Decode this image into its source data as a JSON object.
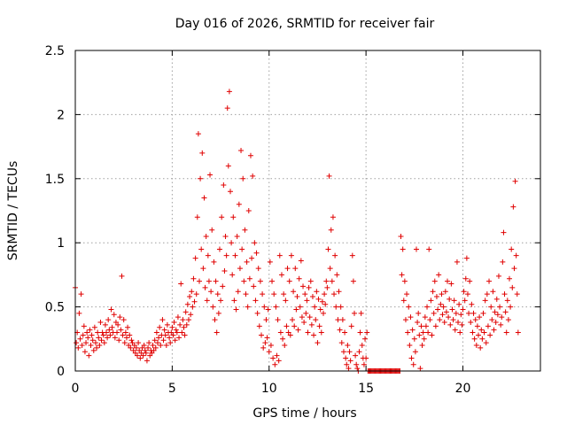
{
  "chart_data": {
    "type": "scatter",
    "title": "Day 016 of 2026, SRMTID for receiver fair",
    "xlabel": "GPS time / hours",
    "ylabel": "SRMTID / TECUs",
    "xlim": [
      0,
      24
    ],
    "ylim": [
      0,
      2.5
    ],
    "xticks": [
      0,
      5,
      10,
      15,
      20
    ],
    "xtick_labels": [
      "0",
      "5",
      "10",
      "15",
      "20"
    ],
    "yticks": [
      0,
      0.5,
      1,
      1.5,
      2,
      2.5
    ],
    "ytick_labels": [
      "0",
      "0.5",
      "1",
      "1.5",
      "2",
      "2.5"
    ],
    "grid": true,
    "marker": "+",
    "series": [
      {
        "name": "SRMTID",
        "color": "#e00000",
        "x": [
          0.0,
          0.05,
          0.1,
          0.15,
          0.2,
          0.25,
          0.3,
          0.35,
          0.4,
          0.45,
          0.5,
          0.55,
          0.6,
          0.65,
          0.7,
          0.75,
          0.8,
          0.85,
          0.9,
          0.95,
          1.0,
          1.05,
          1.1,
          1.15,
          1.2,
          1.25,
          1.3,
          1.35,
          1.4,
          1.45,
          1.5,
          1.55,
          1.6,
          1.65,
          1.7,
          1.75,
          1.8,
          1.85,
          1.9,
          1.95,
          2.0,
          2.05,
          2.1,
          2.15,
          2.2,
          2.25,
          2.3,
          2.35,
          2.4,
          2.45,
          2.5,
          2.55,
          2.6,
          2.65,
          2.7,
          2.75,
          2.8,
          2.85,
          2.9,
          2.95,
          3.0,
          3.05,
          3.1,
          3.15,
          3.2,
          3.25,
          3.3,
          3.35,
          3.4,
          3.45,
          3.5,
          3.55,
          3.6,
          3.65,
          3.7,
          3.75,
          3.8,
          3.85,
          3.9,
          3.95,
          4.0,
          4.05,
          4.1,
          4.15,
          4.2,
          4.25,
          4.3,
          4.35,
          4.4,
          4.45,
          4.5,
          4.55,
          4.6,
          4.65,
          4.7,
          4.75,
          4.8,
          4.85,
          4.9,
          4.95,
          5.0,
          5.05,
          5.1,
          5.15,
          5.2,
          5.25,
          5.3,
          5.35,
          5.4,
          5.45,
          5.5,
          5.55,
          5.6,
          5.65,
          5.7,
          5.75,
          5.8,
          5.85,
          5.9,
          5.95,
          6.0,
          6.05,
          6.1,
          6.15,
          6.2,
          6.25,
          6.3,
          6.35,
          6.4,
          6.45,
          6.5,
          6.55,
          6.6,
          6.65,
          6.7,
          6.75,
          6.8,
          6.85,
          6.9,
          6.95,
          7.0,
          7.05,
          7.1,
          7.15,
          7.2,
          7.25,
          7.3,
          7.35,
          7.4,
          7.45,
          7.5,
          7.55,
          7.6,
          7.65,
          7.7,
          7.75,
          7.8,
          7.85,
          7.9,
          7.95,
          8.0,
          8.05,
          8.1,
          8.15,
          8.2,
          8.25,
          8.3,
          8.35,
          8.4,
          8.45,
          8.5,
          8.55,
          8.6,
          8.65,
          8.7,
          8.75,
          8.8,
          8.85,
          8.9,
          8.95,
          9.0,
          9.05,
          9.1,
          9.15,
          9.2,
          9.25,
          9.3,
          9.35,
          9.4,
          9.45,
          9.5,
          9.55,
          9.6,
          9.65,
          9.7,
          9.75,
          9.8,
          9.85,
          9.9,
          9.95,
          10.0,
          10.05,
          10.1,
          10.15,
          10.2,
          10.25,
          10.3,
          10.35,
          10.4,
          10.45,
          10.5,
          10.55,
          10.6,
          10.65,
          10.7,
          10.75,
          10.8,
          10.85,
          10.9,
          10.95,
          11.0,
          11.05,
          11.1,
          11.15,
          11.2,
          11.25,
          11.3,
          11.35,
          11.4,
          11.45,
          11.5,
          11.55,
          11.6,
          11.65,
          11.7,
          11.75,
          11.8,
          11.85,
          11.9,
          11.95,
          12.0,
          12.05,
          12.1,
          12.15,
          12.2,
          12.25,
          12.3,
          12.35,
          12.4,
          12.45,
          12.5,
          12.55,
          12.6,
          12.65,
          12.7,
          12.75,
          12.8,
          12.85,
          12.9,
          12.95,
          13.0,
          13.05,
          13.1,
          13.15,
          13.2,
          13.25,
          13.3,
          13.35,
          13.4,
          13.45,
          13.5,
          13.55,
          13.6,
          13.65,
          13.7,
          13.75,
          13.8,
          13.85,
          13.9,
          13.95,
          14.0,
          14.05,
          14.1,
          14.15,
          14.2,
          14.25,
          14.3,
          14.35,
          14.4,
          14.45,
          14.5,
          14.55,
          14.6,
          14.65,
          14.7,
          14.75,
          14.8,
          14.85,
          14.9,
          14.95,
          15.0,
          15.05,
          15.1,
          15.15,
          15.2,
          15.25,
          15.3,
          15.35,
          15.4,
          15.45,
          15.5,
          15.55,
          15.6,
          15.65,
          15.7,
          15.75,
          15.8,
          15.85,
          15.9,
          15.95,
          16.0,
          16.05,
          16.1,
          16.15,
          16.2,
          16.25,
          16.3,
          16.35,
          16.4,
          16.45,
          16.5,
          16.55,
          16.6,
          16.65,
          16.7,
          16.75,
          16.8,
          16.85,
          16.9,
          16.95,
          17.0,
          17.05,
          17.1,
          17.15,
          17.2,
          17.25,
          17.3,
          17.35,
          17.4,
          17.45,
          17.5,
          17.55,
          17.6,
          17.65,
          17.7,
          17.75,
          17.8,
          17.85,
          17.9,
          17.95,
          18.0,
          18.05,
          18.1,
          18.15,
          18.2,
          18.25,
          18.3,
          18.35,
          18.4,
          18.45,
          18.5,
          18.55,
          18.6,
          18.65,
          18.7,
          18.75,
          18.8,
          18.85,
          18.9,
          18.95,
          19.0,
          19.05,
          19.1,
          19.15,
          19.2,
          19.25,
          19.3,
          19.35,
          19.4,
          19.45,
          19.5,
          19.55,
          19.6,
          19.65,
          19.7,
          19.75,
          19.8,
          19.85,
          19.9,
          19.95,
          20.0,
          20.05,
          20.1,
          20.15,
          20.2,
          20.25,
          20.3,
          20.35,
          20.4,
          20.45,
          20.5,
          20.55,
          20.6,
          20.65,
          20.7,
          20.75,
          20.8,
          20.85,
          20.9,
          20.95,
          21.0,
          21.05,
          21.1,
          21.15,
          21.2,
          21.25,
          21.3,
          21.35,
          21.4,
          21.45,
          21.5,
          21.55,
          21.6,
          21.65,
          21.7,
          21.75,
          21.8,
          21.85,
          21.9,
          21.95,
          22.0,
          22.05,
          22.1,
          22.15,
          22.2,
          22.25,
          22.3,
          22.35,
          22.4,
          22.45,
          22.5,
          22.55,
          22.6,
          22.65,
          22.7,
          22.75,
          22.8,
          22.85
        ],
        "y": [
          0.65,
          0.22,
          0.3,
          0.18,
          0.45,
          0.25,
          0.6,
          0.2,
          0.28,
          0.35,
          0.15,
          0.22,
          0.3,
          0.26,
          0.12,
          0.32,
          0.2,
          0.28,
          0.24,
          0.16,
          0.34,
          0.22,
          0.18,
          0.3,
          0.26,
          0.2,
          0.38,
          0.24,
          0.3,
          0.28,
          0.22,
          0.36,
          0.3,
          0.26,
          0.4,
          0.32,
          0.28,
          0.48,
          0.34,
          0.3,
          0.44,
          0.26,
          0.38,
          0.3,
          0.36,
          0.24,
          0.42,
          0.32,
          0.74,
          0.28,
          0.4,
          0.22,
          0.3,
          0.26,
          0.34,
          0.2,
          0.28,
          0.18,
          0.24,
          0.22,
          0.16,
          0.2,
          0.14,
          0.18,
          0.12,
          0.22,
          0.16,
          0.1,
          0.14,
          0.18,
          0.12,
          0.2,
          0.16,
          0.14,
          0.08,
          0.18,
          0.22,
          0.12,
          0.16,
          0.14,
          0.2,
          0.16,
          0.24,
          0.18,
          0.3,
          0.22,
          0.26,
          0.34,
          0.2,
          0.28,
          0.4,
          0.24,
          0.32,
          0.28,
          0.2,
          0.36,
          0.3,
          0.26,
          0.22,
          0.3,
          0.34,
          0.28,
          0.38,
          0.24,
          0.32,
          0.3,
          0.42,
          0.26,
          0.36,
          0.68,
          0.3,
          0.4,
          0.34,
          0.28,
          0.46,
          0.36,
          0.52,
          0.4,
          0.58,
          0.44,
          0.62,
          0.5,
          0.72,
          0.54,
          0.88,
          0.6,
          1.2,
          1.85,
          0.7,
          1.5,
          0.95,
          1.7,
          0.8,
          1.35,
          0.65,
          1.05,
          0.55,
          0.9,
          0.7,
          1.53,
          0.62,
          1.1,
          0.5,
          0.85,
          0.4,
          0.7,
          0.3,
          0.6,
          0.45,
          0.95,
          0.55,
          1.2,
          0.66,
          1.45,
          0.78,
          1.05,
          0.9,
          2.05,
          1.6,
          2.18,
          1.4,
          1.0,
          0.75,
          1.2,
          0.55,
          0.9,
          0.48,
          1.05,
          0.62,
          1.3,
          0.8,
          1.72,
          0.95,
          1.5,
          0.7,
          1.1,
          0.6,
          0.85,
          0.5,
          1.25,
          0.72,
          1.68,
          0.88,
          1.52,
          0.66,
          1.0,
          0.55,
          0.92,
          0.45,
          0.8,
          0.35,
          0.7,
          0.28,
          0.6,
          0.18,
          0.5,
          0.22,
          0.4,
          0.26,
          0.48,
          0.15,
          0.85,
          0.2,
          0.7,
          0.1,
          0.6,
          0.05,
          0.5,
          0.12,
          0.4,
          0.08,
          0.9,
          0.3,
          0.75,
          0.25,
          0.6,
          0.2,
          0.55,
          0.35,
          0.8,
          0.3,
          0.7,
          0.28,
          0.9,
          0.4,
          0.62,
          0.35,
          0.8,
          0.48,
          0.58,
          0.32,
          0.72,
          0.5,
          0.86,
          0.42,
          0.66,
          0.38,
          0.6,
          0.45,
          0.55,
          0.3,
          0.65,
          0.42,
          0.7,
          0.36,
          0.58,
          0.28,
          0.5,
          0.4,
          0.62,
          0.22,
          0.56,
          0.35,
          0.48,
          0.3,
          0.54,
          0.45,
          0.6,
          0.52,
          0.7,
          0.65,
          0.95,
          1.52,
          0.8,
          1.1,
          0.7,
          1.2,
          0.6,
          0.9,
          0.5,
          0.75,
          0.4,
          0.62,
          0.32,
          0.5,
          0.22,
          0.4,
          0.15,
          0.3,
          0.1,
          0.05,
          0.2,
          0.02,
          0.15,
          0.08,
          0.35,
          0.9,
          0.7,
          0.45,
          0.12,
          0.05,
          0.02,
          0.0,
          0.15,
          0.3,
          0.45,
          0.2,
          0.1,
          0.05,
          0.25,
          0.1,
          0.3,
          0.0,
          0.0,
          0.0,
          0.0,
          0.0,
          0.0,
          0.0,
          0.0,
          0.0,
          0.0,
          0.0,
          0.0,
          0.0,
          0.0,
          0.0,
          0.0,
          0.0,
          0.0,
          0.0,
          0.0,
          0.0,
          0.0,
          0.0,
          0.0,
          0.0,
          0.0,
          0.0,
          0.0,
          0.0,
          0.0,
          0.0,
          0.0,
          0.0,
          0.0,
          1.05,
          0.75,
          0.95,
          0.55,
          0.7,
          0.4,
          0.6,
          0.3,
          0.5,
          0.2,
          0.42,
          0.1,
          0.32,
          0.05,
          0.25,
          0.15,
          0.95,
          0.38,
          0.45,
          0.28,
          0.02,
          0.35,
          0.2,
          0.3,
          0.25,
          0.42,
          0.35,
          0.5,
          0.3,
          0.95,
          0.4,
          0.55,
          0.28,
          0.62,
          0.45,
          0.7,
          0.35,
          0.58,
          0.48,
          0.75,
          0.4,
          0.52,
          0.6,
          0.44,
          0.5,
          0.38,
          0.62,
          0.46,
          0.7,
          0.42,
          0.56,
          0.36,
          0.68,
          0.48,
          0.4,
          0.55,
          0.32,
          0.45,
          0.85,
          0.38,
          0.52,
          0.3,
          0.44,
          0.36,
          0.48,
          0.62,
          0.55,
          0.72,
          0.88,
          0.6,
          0.45,
          0.7,
          0.38,
          0.52,
          0.3,
          0.45,
          0.25,
          0.4,
          0.2,
          0.35,
          0.28,
          0.42,
          0.18,
          0.32,
          0.25,
          0.45,
          0.3,
          0.55,
          0.22,
          0.6,
          0.35,
          0.7,
          0.28,
          0.5,
          0.4,
          0.62,
          0.32,
          0.46,
          0.38,
          0.56,
          0.44,
          0.74,
          0.5,
          0.36,
          0.42,
          0.85,
          1.08,
          0.6,
          0.46,
          0.3,
          0.55,
          0.4,
          0.72,
          0.5,
          0.95,
          0.65,
          1.28,
          0.8,
          1.48,
          0.9,
          0.6,
          0.3
        ]
      }
    ]
  }
}
